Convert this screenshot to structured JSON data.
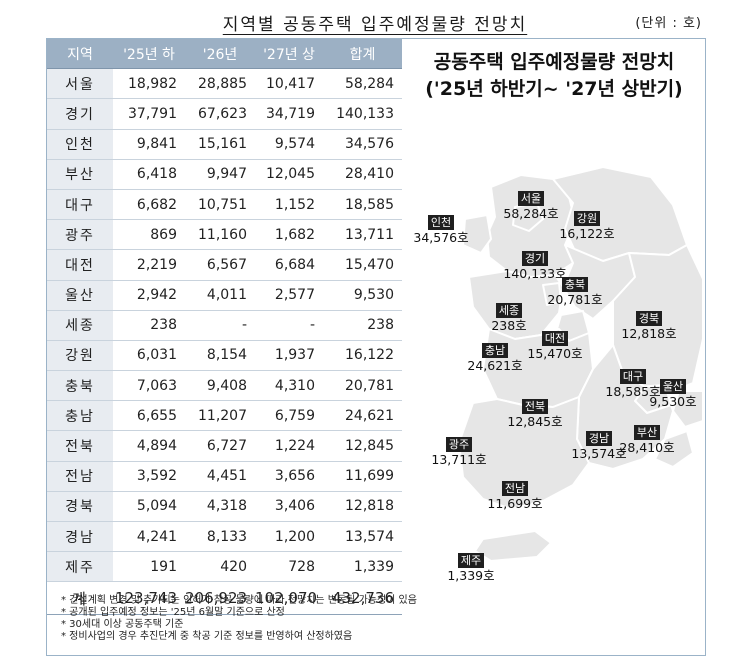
{
  "title": "지역별 공동주택 입주예정물량 전망치",
  "unit": "(단위 : 호)",
  "table": {
    "headers": [
      "지역",
      "'25년 하",
      "'26년",
      "'27년 상",
      "합계"
    ],
    "rows": [
      {
        "region": "서울",
        "h25": "18,982",
        "y26": "28,885",
        "h27": "10,417",
        "total": "58,284"
      },
      {
        "region": "경기",
        "h25": "37,791",
        "y26": "67,623",
        "h27": "34,719",
        "total": "140,133"
      },
      {
        "region": "인천",
        "h25": "9,841",
        "y26": "15,161",
        "h27": "9,574",
        "total": "34,576"
      },
      {
        "region": "부산",
        "h25": "6,418",
        "y26": "9,947",
        "h27": "12,045",
        "total": "28,410"
      },
      {
        "region": "대구",
        "h25": "6,682",
        "y26": "10,751",
        "h27": "1,152",
        "total": "18,585"
      },
      {
        "region": "광주",
        "h25": "869",
        "y26": "11,160",
        "h27": "1,682",
        "total": "13,711"
      },
      {
        "region": "대전",
        "h25": "2,219",
        "y26": "6,567",
        "h27": "6,684",
        "total": "15,470"
      },
      {
        "region": "울산",
        "h25": "2,942",
        "y26": "4,011",
        "h27": "2,577",
        "total": "9,530"
      },
      {
        "region": "세종",
        "h25": "238",
        "y26": "-",
        "h27": "-",
        "total": "238"
      },
      {
        "region": "강원",
        "h25": "6,031",
        "y26": "8,154",
        "h27": "1,937",
        "total": "16,122"
      },
      {
        "region": "충북",
        "h25": "7,063",
        "y26": "9,408",
        "h27": "4,310",
        "total": "20,781"
      },
      {
        "region": "충남",
        "h25": "6,655",
        "y26": "11,207",
        "h27": "6,759",
        "total": "24,621"
      },
      {
        "region": "전북",
        "h25": "4,894",
        "y26": "6,727",
        "h27": "1,224",
        "total": "12,845"
      },
      {
        "region": "전남",
        "h25": "3,592",
        "y26": "4,451",
        "h27": "3,656",
        "total": "11,699"
      },
      {
        "region": "경북",
        "h25": "5,094",
        "y26": "4,318",
        "h27": "3,406",
        "total": "12,818"
      },
      {
        "region": "경남",
        "h25": "4,241",
        "y26": "8,133",
        "h27": "1,200",
        "total": "13,574"
      },
      {
        "region": "제주",
        "h25": "191",
        "y26": "420",
        "h27": "728",
        "total": "1,339"
      }
    ],
    "total": {
      "region": "계",
      "h25": "123,743",
      "y26": "206,923",
      "h27": "102,070",
      "total": "432,736"
    }
  },
  "map": {
    "title_line1": "공동주택 입주예정물량 전망치",
    "title_line2": "('25년 하반기~ '27년 상반기)",
    "labels": [
      {
        "name": "서울",
        "value": "58,284호"
      },
      {
        "name": "인천",
        "value": "34,576호"
      },
      {
        "name": "강원",
        "value": "16,122호"
      },
      {
        "name": "경기",
        "value": "140,133호"
      },
      {
        "name": "충북",
        "value": "20,781호"
      },
      {
        "name": "세종",
        "value": "238호"
      },
      {
        "name": "경북",
        "value": "12,818호"
      },
      {
        "name": "충남",
        "value": "24,621호"
      },
      {
        "name": "대전",
        "value": "15,470호"
      },
      {
        "name": "대구",
        "value": "18,585호"
      },
      {
        "name": "울산",
        "value": "9,530호"
      },
      {
        "name": "전북",
        "value": "12,845호"
      },
      {
        "name": "광주",
        "value": "13,711호"
      },
      {
        "name": "경남",
        "value": "13,574호"
      },
      {
        "name": "부산",
        "value": "28,410호"
      },
      {
        "name": "전남",
        "value": "11,699호"
      },
      {
        "name": "제주",
        "value": "1,339호"
      }
    ]
  },
  "notes": [
    "* 건설계획 변경 및 추가되는 인허가·착공 물량에 따라 전망치는 변동될 가능성이 있음",
    "* 공개된 입주예정 정보는 '25년 6월말 기준으로 산정",
    "* 30세대 이상 공동주택 기준",
    "* 정비사업의 경우 추진단계 중 착공 기준 정보를 반영하여 산정하였음"
  ],
  "colors": {
    "header_bg": "#9cb0c4",
    "region_bg": "#e8ecf1",
    "map_fill": "#e6e6e6",
    "map_border": "#ffffff",
    "label_bg": "#1f1f1f"
  }
}
